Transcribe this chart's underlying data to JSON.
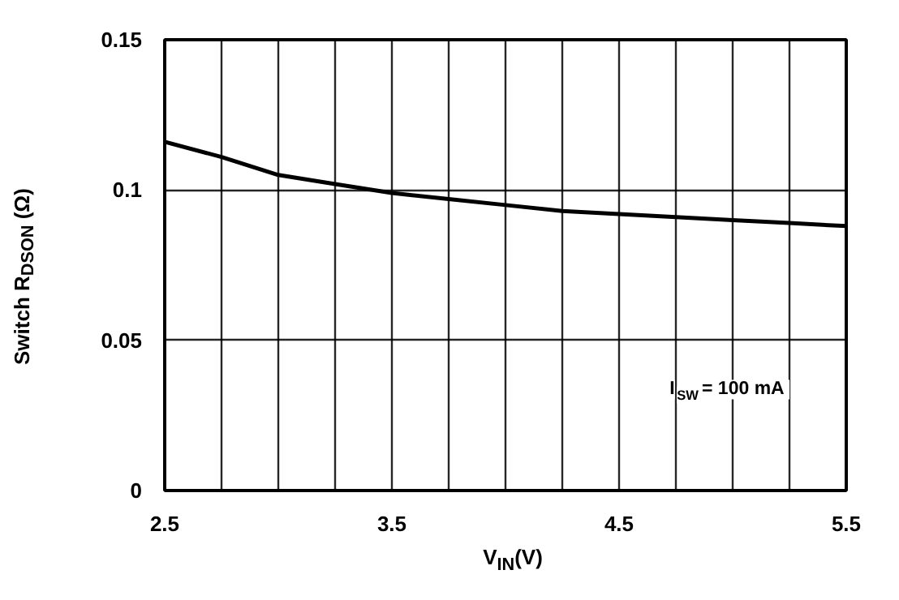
{
  "chart_data": {
    "type": "line",
    "xlabel": "V$_{IN}$(V)",
    "ylabel": "Switch R$_{DSON}$ (Ω)",
    "annotations": [
      "I$_{SW}$ = 100 mA"
    ],
    "x": [
      2.5,
      2.75,
      3.0,
      3.25,
      3.5,
      3.75,
      4.0,
      4.25,
      4.5,
      4.75,
      5.0,
      5.25,
      5.5
    ],
    "series": [
      {
        "color": "#000000",
        "values": [
          0.116,
          0.111,
          0.105,
          0.102,
          0.099,
          0.097,
          0.095,
          0.093,
          0.092,
          0.091,
          0.09,
          0.089,
          0.088
        ]
      }
    ],
    "xlim": [
      2.5,
      5.5
    ],
    "xticks": [
      2.5,
      {
        "value": 2.75,
        "label": null
      },
      {
        "value": 3.0,
        "label": null
      },
      {
        "value": 3.25,
        "label": null
      },
      3.5,
      {
        "value": 3.75,
        "label": null
      },
      {
        "value": 4.0,
        "label": null
      },
      {
        "value": 4.25,
        "label": null
      },
      4.5,
      {
        "value": 4.75,
        "label": null
      },
      {
        "value": 5.0,
        "label": null
      },
      {
        "value": 5.25,
        "label": null
      },
      5.5
    ],
    "ylim": [
      0,
      0.15
    ],
    "yticks": [
      0,
      0.05,
      0.1,
      0.15
    ],
    "grid": true,
    "marker": "none",
    "line_style": "solid"
  }
}
